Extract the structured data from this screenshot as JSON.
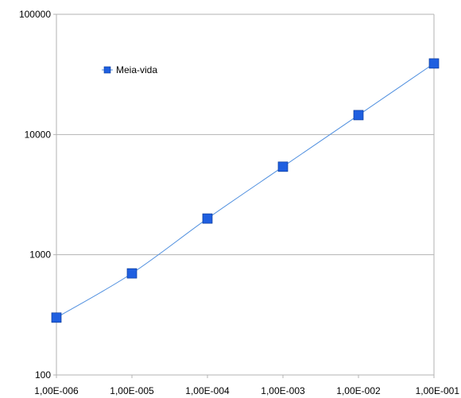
{
  "chart_data": {
    "type": "line",
    "x_scale": "log",
    "y_scale": "log",
    "x_ticks": [
      "1,00E-006",
      "1,00E-005",
      "1,00E-004",
      "1,00E-003",
      "1,00E-002",
      "1,00E-001"
    ],
    "y_ticks": [
      "100",
      "1000",
      "10000",
      "100000"
    ],
    "xlim": [
      1e-06,
      0.1
    ],
    "ylim": [
      100,
      100000
    ],
    "grid": true,
    "legend": {
      "position": "top-left",
      "entries": [
        "Meia-vida"
      ]
    },
    "series": [
      {
        "name": "Meia-vida",
        "color": "#1f5fe0",
        "line_color": "#4f8fdf",
        "marker": "square",
        "x": [
          1e-06,
          1e-05,
          0.0001,
          0.001,
          0.01,
          0.1
        ],
        "y": [
          300,
          700,
          2000,
          5400,
          14500,
          39000
        ]
      }
    ]
  }
}
